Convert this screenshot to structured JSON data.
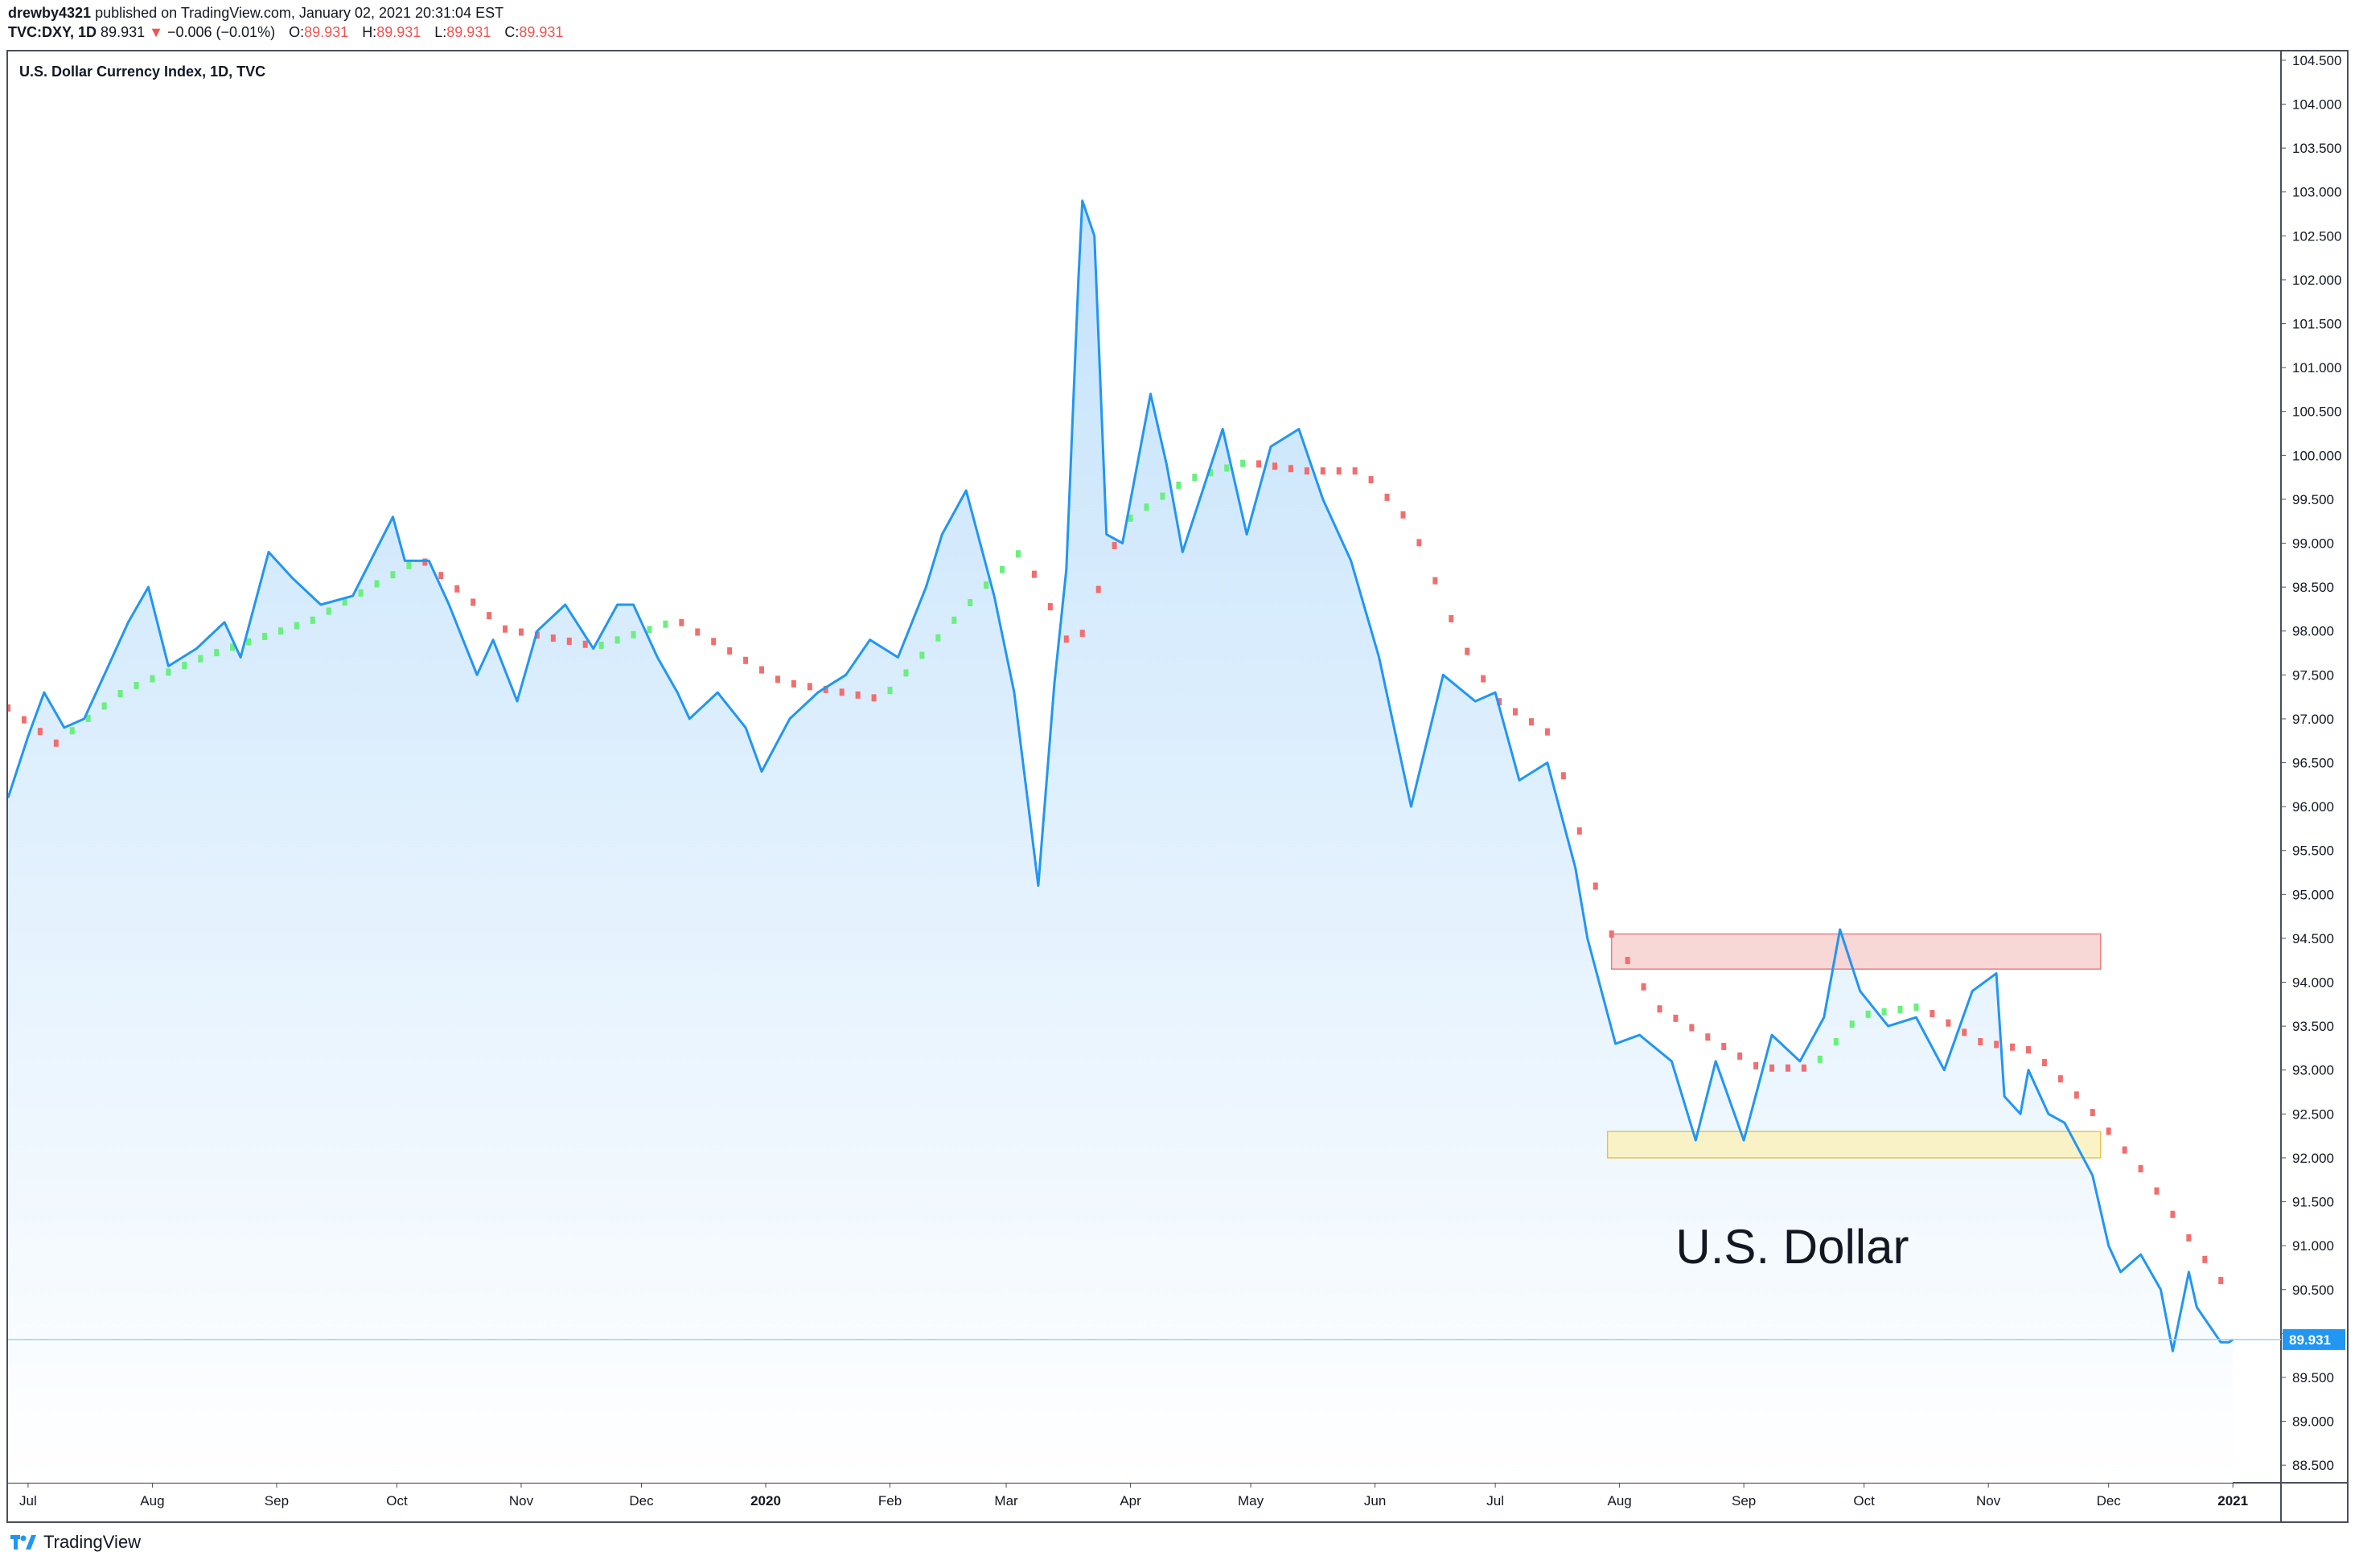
{
  "header": {
    "user": "drewby4321",
    "published": "published on TradingView.com, January 02, 2021 20:31:04 EST",
    "symbol": "TVC:DXY, 1D",
    "last": "89.931",
    "change_arrow": "▼",
    "change": "−0.006 (−0.01%)",
    "o_label": "O:",
    "o_value": "89.931",
    "h_label": "H:",
    "h_value": "89.931",
    "l_label": "L:",
    "l_value": "89.931",
    "c_label": "C:",
    "c_value": "89.931"
  },
  "footer": {
    "brand": "TradingView"
  },
  "colors": {
    "line": "#2196f3",
    "fill_top": "#bbdefb",
    "fill_bottom": "#ffffff",
    "ma_up": "#69f07d",
    "ma_down": "#f26e6e",
    "resistance_fill": "#f8d3d3",
    "resistance_stroke": "#e57373",
    "support_fill": "#fbf2c0",
    "support_stroke": "#e0c040",
    "last_price_bg": "#2196f3",
    "axis_text": "#131722"
  },
  "chart_data": {
    "type": "area",
    "title": "U.S. Dollar Currency Index, 1D, TVC",
    "ylim": [
      88.3,
      104.6
    ],
    "y_ticks": [
      "88.500",
      "89.000",
      "89.500",
      "90.000",
      "90.500",
      "91.000",
      "91.500",
      "92.000",
      "92.500",
      "93.000",
      "93.500",
      "94.000",
      "94.500",
      "95.000",
      "95.500",
      "96.000",
      "96.500",
      "97.000",
      "97.500",
      "98.000",
      "98.500",
      "99.000",
      "99.500",
      "100.000",
      "100.500",
      "101.000",
      "101.500",
      "102.000",
      "102.500",
      "103.000",
      "103.500",
      "104.000",
      "104.500"
    ],
    "x_ticks": [
      {
        "label": "Jul",
        "date": "2019-07-01"
      },
      {
        "label": "Aug",
        "date": "2019-08-01"
      },
      {
        "label": "Sep",
        "date": "2019-09-01"
      },
      {
        "label": "Oct",
        "date": "2019-10-01"
      },
      {
        "label": "Nov",
        "date": "2019-11-01"
      },
      {
        "label": "Dec",
        "date": "2019-12-01"
      },
      {
        "label": "2020",
        "date": "2020-01-01"
      },
      {
        "label": "Feb",
        "date": "2020-02-01"
      },
      {
        "label": "Mar",
        "date": "2020-03-01"
      },
      {
        "label": "Apr",
        "date": "2020-04-01"
      },
      {
        "label": "May",
        "date": "2020-05-01"
      },
      {
        "label": "Jun",
        "date": "2020-06-01"
      },
      {
        "label": "Jul",
        "date": "2020-07-01"
      },
      {
        "label": "Aug",
        "date": "2020-08-01"
      },
      {
        "label": "Sep",
        "date": "2020-09-01"
      },
      {
        "label": "Oct",
        "date": "2020-10-01"
      },
      {
        "label": "Nov",
        "date": "2020-11-01"
      },
      {
        "label": "Dec",
        "date": "2020-12-01"
      },
      {
        "label": "2021",
        "date": "2021-01-01"
      }
    ],
    "x_start": "2019-06-26",
    "x_end": "2021-01-13",
    "series": [
      {
        "name": "",
        "x": [
          "2019-06-26",
          "2019-07-01",
          "2019-07-05",
          "2019-07-10",
          "2019-07-15",
          "2019-07-22",
          "2019-07-26",
          "2019-07-31",
          "2019-08-05",
          "2019-08-12",
          "2019-08-19",
          "2019-08-23",
          "2019-08-30",
          "2019-09-05",
          "2019-09-12",
          "2019-09-20",
          "2019-09-30",
          "2019-10-03",
          "2019-10-09",
          "2019-10-14",
          "2019-10-21",
          "2019-10-25",
          "2019-10-31",
          "2019-11-05",
          "2019-11-12",
          "2019-11-19",
          "2019-11-25",
          "2019-11-29",
          "2019-12-05",
          "2019-12-10",
          "2019-12-13",
          "2019-12-20",
          "2019-12-27",
          "2019-12-31",
          "2020-01-07",
          "2020-01-14",
          "2020-01-21",
          "2020-01-27",
          "2020-02-03",
          "2020-02-10",
          "2020-02-14",
          "2020-02-20",
          "2020-02-27",
          "2020-03-03",
          "2020-03-06",
          "2020-03-09",
          "2020-03-13",
          "2020-03-16",
          "2020-03-19",
          "2020-03-20",
          "2020-03-23",
          "2020-03-26",
          "2020-03-30",
          "2020-04-06",
          "2020-04-10",
          "2020-04-14",
          "2020-04-24",
          "2020-04-30",
          "2020-05-06",
          "2020-05-13",
          "2020-05-19",
          "2020-05-26",
          "2020-06-02",
          "2020-06-10",
          "2020-06-18",
          "2020-06-26",
          "2020-07-01",
          "2020-07-07",
          "2020-07-14",
          "2020-07-21",
          "2020-07-24",
          "2020-07-31",
          "2020-08-06",
          "2020-08-14",
          "2020-08-20",
          "2020-08-25",
          "2020-09-01",
          "2020-09-08",
          "2020-09-15",
          "2020-09-21",
          "2020-09-25",
          "2020-09-30",
          "2020-10-07",
          "2020-10-14",
          "2020-10-21",
          "2020-10-28",
          "2020-11-03",
          "2020-11-05",
          "2020-11-09",
          "2020-11-11",
          "2020-11-16",
          "2020-11-20",
          "2020-11-27",
          "2020-12-01",
          "2020-12-04",
          "2020-12-09",
          "2020-12-14",
          "2020-12-17",
          "2020-12-21",
          "2020-12-23",
          "2020-12-29",
          "2020-12-31",
          "2021-01-01"
        ],
        "values": [
          96.1,
          96.8,
          97.3,
          96.9,
          97.0,
          97.7,
          98.1,
          98.5,
          97.6,
          97.8,
          98.1,
          97.7,
          98.9,
          98.6,
          98.3,
          98.4,
          99.3,
          98.8,
          98.8,
          98.3,
          97.5,
          97.9,
          97.2,
          98.0,
          98.3,
          97.8,
          98.3,
          98.3,
          97.7,
          97.3,
          97.0,
          97.3,
          96.9,
          96.4,
          97.0,
          97.3,
          97.5,
          97.9,
          97.7,
          98.5,
          99.1,
          99.6,
          98.4,
          97.3,
          96.2,
          95.1,
          97.4,
          98.7,
          102.0,
          102.9,
          102.5,
          99.1,
          99.0,
          100.7,
          99.9,
          98.9,
          100.3,
          99.1,
          100.1,
          100.3,
          99.5,
          98.8,
          97.7,
          96.0,
          97.5,
          97.2,
          97.3,
          96.3,
          96.5,
          95.3,
          94.5,
          93.3,
          93.4,
          93.1,
          92.2,
          93.1,
          92.2,
          93.4,
          93.1,
          93.6,
          94.6,
          93.9,
          93.5,
          93.6,
          93.0,
          93.9,
          94.1,
          92.7,
          92.5,
          93.0,
          92.5,
          92.4,
          91.8,
          91.0,
          90.7,
          90.9,
          90.5,
          89.8,
          90.7,
          90.3,
          89.9,
          89.9,
          89.93
        ]
      },
      {
        "name": "",
        "x": [
          "2019-06-26",
          "2019-07-08",
          "2019-07-25",
          "2019-08-15",
          "2019-09-10",
          "2019-10-07",
          "2019-10-28",
          "2019-11-20",
          "2019-12-10",
          "2020-01-05",
          "2020-01-30",
          "2020-02-25",
          "2020-03-05",
          "2020-03-18",
          "2020-03-30",
          "2020-04-15",
          "2020-04-30",
          "2020-05-15",
          "2020-05-29",
          "2020-06-10",
          "2020-06-22",
          "2020-07-01",
          "2020-07-15",
          "2020-07-29",
          "2020-08-10",
          "2020-08-25",
          "2020-09-05",
          "2020-09-18",
          "2020-09-30",
          "2020-10-15",
          "2020-10-30",
          "2020-11-12",
          "2020-11-25",
          "2020-12-10",
          "2020-12-22",
          "2021-01-01"
        ],
        "values": [
          97.1,
          96.7,
          97.3,
          97.7,
          98.1,
          98.8,
          98.0,
          97.8,
          98.1,
          97.4,
          97.2,
          98.5,
          98.9,
          97.7,
          99.2,
          99.7,
          99.9,
          99.8,
          99.8,
          99.2,
          97.9,
          97.2,
          96.8,
          94.6,
          93.7,
          93.3,
          93.0,
          93.0,
          93.6,
          93.7,
          93.3,
          93.2,
          92.6,
          91.8,
          91.0,
          90.4
        ],
        "trend": [
          "down",
          "up",
          "up",
          "up",
          "up",
          "down",
          "down",
          "up",
          "down",
          "down",
          "up",
          "up",
          "down",
          "down",
          "up",
          "up",
          "down",
          "down",
          "down",
          "down",
          "down",
          "down",
          "down",
          "down",
          "down",
          "down",
          "down",
          "up",
          "up",
          "down",
          "down",
          "down",
          "down",
          "down",
          "down",
          "down"
        ]
      }
    ],
    "last_price": "89.931",
    "annotations": [
      {
        "type": "zone",
        "role": "resistance",
        "from": "2020-07-30",
        "to": "2020-11-29",
        "low": 94.15,
        "high": 94.55
      },
      {
        "type": "zone",
        "role": "support",
        "from": "2020-07-29",
        "to": "2020-11-29",
        "low": 92.0,
        "high": 92.3
      },
      {
        "type": "text",
        "text": "U.S. Dollar",
        "date": "2020-08-15",
        "y": 90.8
      }
    ]
  }
}
